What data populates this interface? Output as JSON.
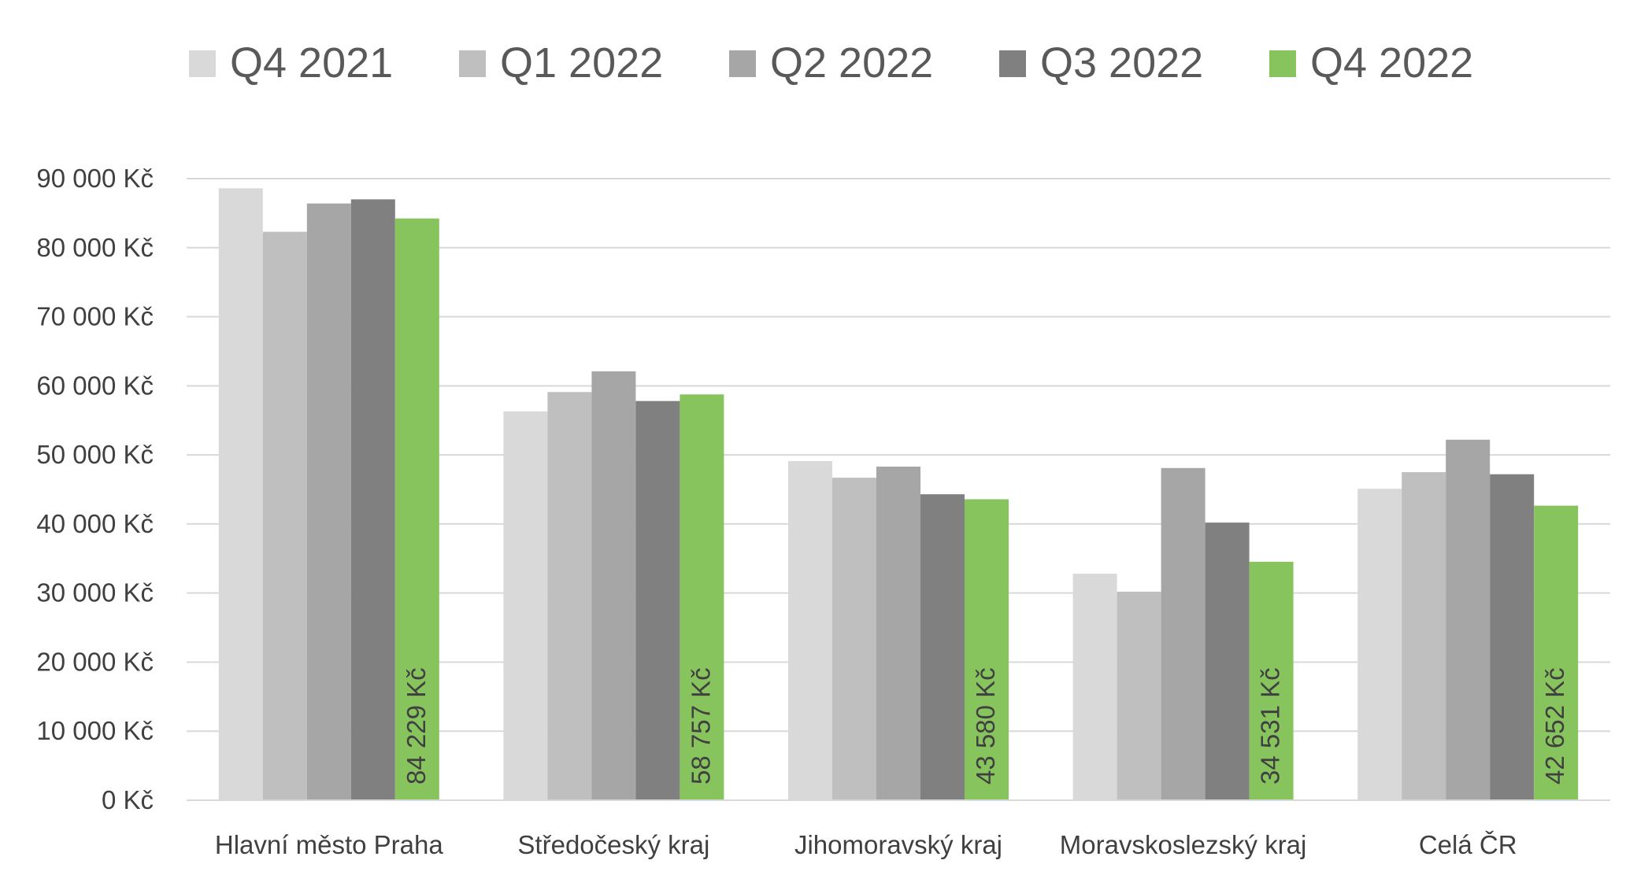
{
  "chart_data": {
    "type": "bar",
    "title": "",
    "xlabel": "",
    "ylabel": "",
    "categories": [
      "Hlavní město Praha",
      "Středočeský kraj",
      "Jihomoravský kraj",
      "Moravskoslezský kraj",
      "Celá ČR"
    ],
    "series": [
      {
        "name": "Q4 2021",
        "color": "#D9D9D9",
        "values": [
          88600,
          56300,
          49100,
          32800,
          45100
        ]
      },
      {
        "name": "Q1 2022",
        "color": "#BFBFBF",
        "values": [
          82300,
          59100,
          46700,
          30200,
          47500
        ]
      },
      {
        "name": "Q2 2022",
        "color": "#A6A6A6",
        "values": [
          86400,
          62100,
          48300,
          48100,
          52200
        ]
      },
      {
        "name": "Q3 2022",
        "color": "#808080",
        "values": [
          87000,
          57800,
          44300,
          40200,
          47200
        ]
      },
      {
        "name": "Q4 2022",
        "color": "#88C45E",
        "values": [
          84229,
          58757,
          43580,
          34531,
          42652
        ]
      }
    ],
    "data_labels": {
      "series": "Q4 2022",
      "texts": [
        "84 229 Kč",
        "58 757 Kč",
        "43 580 Kč",
        "34 531 Kč",
        "42 652 Kč"
      ]
    },
    "y_axis": {
      "min": 0,
      "max": 90000,
      "step": 10000,
      "tick_labels": [
        "0 Kč",
        "10 000 Kč",
        "20 000 Kč",
        "30 000 Kč",
        "40 000 Kč",
        "50 000 Kč",
        "60 000 Kč",
        "70 000 Kč",
        "80 000 Kč",
        "90 000 Kč"
      ]
    },
    "grid": true,
    "legend_position": "top",
    "colors": {
      "grid": "#D9D9D9",
      "axis_text": "#404040",
      "legend_text": "#595959",
      "data_label_text": "#404040"
    }
  }
}
